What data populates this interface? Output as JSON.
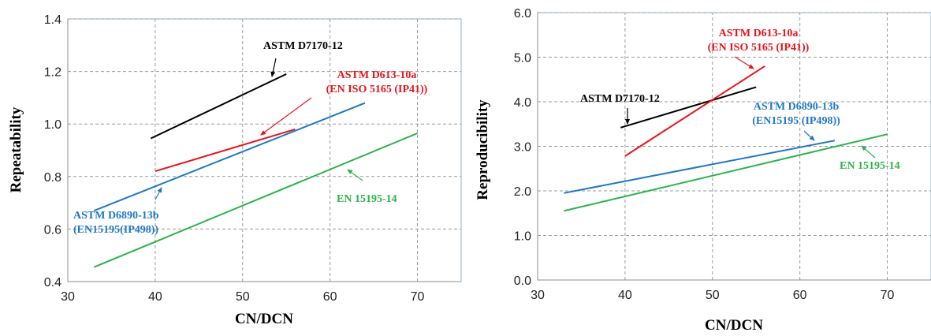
{
  "chart_data": [
    {
      "type": "line",
      "xlabel": "CN/DCN",
      "ylabel": "Repeatability",
      "xlim": [
        30,
        75
      ],
      "ylim": [
        0.4,
        1.4
      ],
      "x_ticks": [
        "30",
        "40",
        "50",
        "60",
        "70"
      ],
      "y_ticks": [
        "0.4",
        "0.6",
        "0.8",
        "1.0",
        "1.2",
        "1.4"
      ],
      "grid": true,
      "series": [
        {
          "name": "ASTM D7170-12",
          "color": "#000000",
          "x": [
            39.5,
            55
          ],
          "y": [
            0.945,
            1.19
          ]
        },
        {
          "name": "ASTM D613-10a (EN ISO 5165 (IP41))",
          "color": "#e8141c",
          "x": [
            40,
            56
          ],
          "y": [
            0.82,
            0.98
          ]
        },
        {
          "name": "ASTM D6890-13b (EN15195(IP498))",
          "color": "#1f77c4",
          "x": [
            33,
            64
          ],
          "y": [
            0.67,
            1.08
          ]
        },
        {
          "name": "EN 15195-14",
          "color": "#2db34a",
          "x": [
            33,
            70
          ],
          "y": [
            0.455,
            0.965
          ]
        }
      ],
      "annotations": [
        {
          "lines": [
            "ASTM D7170-12"
          ],
          "color": "#000000"
        },
        {
          "lines": [
            "ASTM D613-10a",
            "(EN ISO 5165 (IP41))"
          ],
          "color": "#e8141c"
        },
        {
          "lines": [
            "ASTM D6890-13b",
            "(EN15195(IP498))"
          ],
          "color": "#1f77c4"
        },
        {
          "lines": [
            "EN 15195-14"
          ],
          "color": "#2db34a"
        }
      ]
    },
    {
      "type": "line",
      "xlabel": "CN/DCN",
      "ylabel": "Reproducibility",
      "xlim": [
        30,
        75
      ],
      "ylim": [
        0.0,
        6.0
      ],
      "x_ticks": [
        "30",
        "40",
        "50",
        "60",
        "70"
      ],
      "y_ticks": [
        "0.0",
        "1.0",
        "2.0",
        "3.0",
        "4.0",
        "5.0",
        "6.0"
      ],
      "grid": true,
      "series": [
        {
          "name": "ASTM D7170-12",
          "color": "#000000",
          "x": [
            39.5,
            55
          ],
          "y": [
            3.42,
            4.33
          ]
        },
        {
          "name": "ASTM D613-10a (EN ISO 5165 (IP41))",
          "color": "#e8141c",
          "x": [
            40,
            56
          ],
          "y": [
            2.78,
            4.8
          ]
        },
        {
          "name": "ASTM D6890-13b (EN15195 (IP498))",
          "color": "#1f77c4",
          "x": [
            33,
            64
          ],
          "y": [
            1.95,
            3.13
          ]
        },
        {
          "name": "EN 15195-14",
          "color": "#2db34a",
          "x": [
            33,
            70
          ],
          "y": [
            1.55,
            3.27
          ]
        }
      ],
      "annotations": [
        {
          "lines": [
            "ASTM D7170-12"
          ],
          "color": "#000000"
        },
        {
          "lines": [
            "ASTM D613-10a",
            "(EN ISO 5165 (IP41))"
          ],
          "color": "#e8141c"
        },
        {
          "lines": [
            "ASTM D6890-13b",
            "(EN15195 (IP498))"
          ],
          "color": "#1f77c4"
        },
        {
          "lines": [
            "EN 15195-14"
          ],
          "color": "#2db34a"
        }
      ]
    }
  ]
}
